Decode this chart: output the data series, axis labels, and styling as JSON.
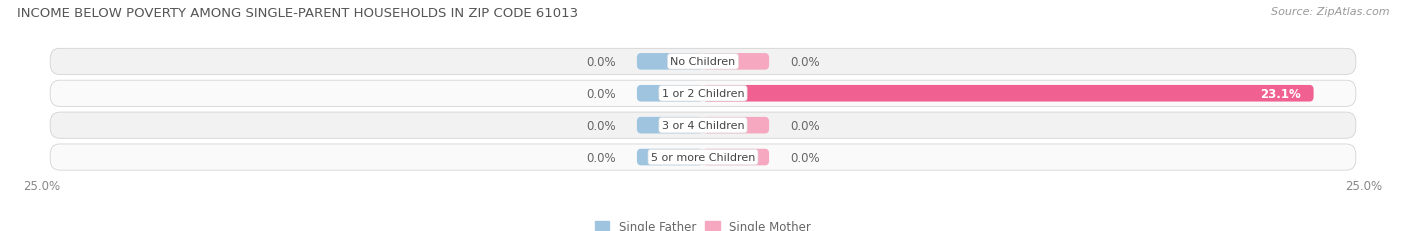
{
  "title": "INCOME BELOW POVERTY AMONG SINGLE-PARENT HOUSEHOLDS IN ZIP CODE 61013",
  "source": "Source: ZipAtlas.com",
  "categories": [
    "No Children",
    "1 or 2 Children",
    "3 or 4 Children",
    "5 or more Children"
  ],
  "single_father": [
    0.0,
    0.0,
    0.0,
    0.0
  ],
  "single_mother": [
    0.0,
    23.1,
    0.0,
    0.0
  ],
  "xlim_pct": [
    -25.0,
    25.0
  ],
  "father_color": "#9ec4e0",
  "mother_color_stub": "#f5a8c0",
  "mother_color_full": "#f06090",
  "bar_height": 0.52,
  "row_bg_light": "#f2f2f2",
  "row_bg_white": "#fafafa",
  "title_fontsize": 9.5,
  "source_fontsize": 8,
  "label_fontsize": 8.5,
  "tick_fontsize": 8.5,
  "category_fontsize": 8,
  "stub_size": 2.5
}
